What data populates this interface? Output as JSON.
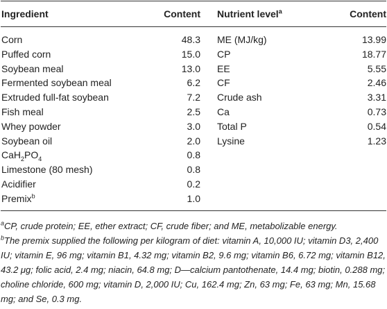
{
  "table": {
    "header": [
      "Ingredient",
      "Content",
      [
        {
          "text": "Nutrient level"
        },
        {
          "sup": "a"
        }
      ],
      "Content"
    ],
    "ingredients": [
      {
        "name": "Corn",
        "content": "48.3"
      },
      {
        "name": "Puffed corn",
        "content": "15.0"
      },
      {
        "name": "Soybean meal",
        "content": "13.0"
      },
      {
        "name": "Fermented soybean meal",
        "content": "6.2"
      },
      {
        "name": "Extruded full-fat soybean",
        "content": "7.2"
      },
      {
        "name": "Fish meal",
        "content": "2.5"
      },
      {
        "name": "Whey powder",
        "content": "3.0"
      },
      {
        "name": "Soybean oil",
        "content": "2.0"
      },
      {
        "name": [
          {
            "text": "CaH"
          },
          {
            "sub": "2"
          },
          {
            "text": "PO"
          },
          {
            "sub": "4"
          }
        ],
        "content": "0.8"
      },
      {
        "name": "Limestone (80 mesh)",
        "content": "0.8"
      },
      {
        "name": "Acidifier",
        "content": "0.2"
      },
      {
        "name": [
          {
            "text": "Premix"
          },
          {
            "sup": "b"
          }
        ],
        "content": "1.0"
      }
    ],
    "nutrients": [
      {
        "name": "ME (MJ/kg)",
        "content": "13.99"
      },
      {
        "name": "CP",
        "content": "18.77"
      },
      {
        "name": "EE",
        "content": "5.55"
      },
      {
        "name": "CF",
        "content": "2.46"
      },
      {
        "name": "Crude ash",
        "content": "3.31"
      },
      {
        "name": "Ca",
        "content": "0.73"
      },
      {
        "name": "Total P",
        "content": "0.54"
      },
      {
        "name": "Lysine",
        "content": "1.23"
      }
    ]
  },
  "footnotes": [
    {
      "mark": "a",
      "text": "CP, crude protein; EE, ether extract; CF, crude fiber; and ME, metabolizable energy."
    },
    {
      "mark": "b",
      "text": "The premix supplied the following per kilogram of diet: vitamin A, 10,000 IU; vitamin D3, 2,400 IU; vitamin E, 96 mg; vitamin B1, 4.32 mg; vitamin B2, 9.6 mg; vitamin B6, 6.72 mg; vitamin B12, 43.2 μg; folic acid, 2.4 mg; niacin, 64.8 mg; D—calcium pantothenate, 14.4 mg; biotin, 0.288 mg; choline chloride, 600 mg; vitamin D, 2,000 IU; Cu, 162.4 mg; Zn, 63 mg; Fe, 63 mg; Mn, 15.68 mg; and Se, 0.3 mg."
    }
  ]
}
